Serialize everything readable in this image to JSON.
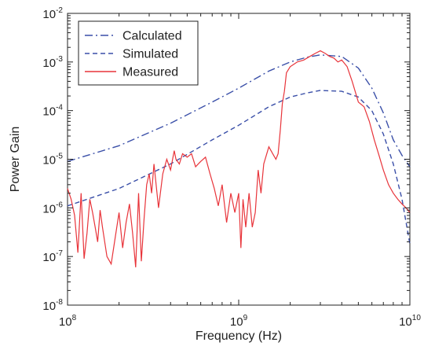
{
  "chart_data": {
    "type": "line",
    "title": "",
    "xlabel": "Frequency (Hz)",
    "ylabel": "Power Gain",
    "xscale": "log",
    "yscale": "log",
    "xlim": [
      100000000.0,
      10000000000.0
    ],
    "ylim": [
      1e-08,
      0.01
    ],
    "grid": false,
    "legend_position": "top-left",
    "x_ticks": [
      {
        "value": 100000000.0,
        "base": "10",
        "exp": "8"
      },
      {
        "value": 1000000000.0,
        "base": "10",
        "exp": "9"
      },
      {
        "value": 10000000000.0,
        "base": "10",
        "exp": "10"
      }
    ],
    "y_ticks": [
      {
        "value": 1e-08,
        "base": "10",
        "exp": "-8"
      },
      {
        "value": 1e-07,
        "base": "10",
        "exp": "-7"
      },
      {
        "value": 1e-06,
        "base": "10",
        "exp": "-6"
      },
      {
        "value": 1e-05,
        "base": "10",
        "exp": "-5"
      },
      {
        "value": 0.0001,
        "base": "10",
        "exp": "-4"
      },
      {
        "value": 0.001,
        "base": "10",
        "exp": "-3"
      },
      {
        "value": 0.01,
        "base": "10",
        "exp": "-2"
      }
    ],
    "series": [
      {
        "name": "Calculated",
        "color": "#3a4fa8",
        "style": "dashdot",
        "x": [
          100000000.0,
          200000000.0,
          400000000.0,
          700000000.0,
          1000000000.0,
          1500000000.0,
          2000000000.0,
          2500000000.0,
          3000000000.0,
          4000000000.0,
          5000000000.0,
          6000000000.0,
          7000000000.0,
          8000000000.0,
          9000000000.0,
          10000000000.0
        ],
        "y": [
          9e-06,
          1.9e-05,
          5.5e-05,
          0.00015,
          0.00029,
          0.00065,
          0.001,
          0.00125,
          0.0014,
          0.0013,
          0.00075,
          0.00029,
          9e-05,
          2.5e-05,
          1.2e-05,
          7e-06
        ]
      },
      {
        "name": "Simulated",
        "color": "#3a4fa8",
        "style": "dashed",
        "x": [
          100000000.0,
          200000000.0,
          400000000.0,
          700000000.0,
          1000000000.0,
          1500000000.0,
          2000000000.0,
          2500000000.0,
          3000000000.0,
          4000000000.0,
          5000000000.0,
          6000000000.0,
          7000000000.0,
          8000000000.0,
          9000000000.0,
          10000000000.0
        ],
        "y": [
          1.1e-06,
          2.5e-06,
          8e-06,
          2.5e-05,
          5e-05,
          0.00012,
          0.00019,
          0.00023,
          0.00026,
          0.00025,
          0.00019,
          0.0001,
          3.3e-05,
          8e-06,
          1.5e-06,
          1.8e-07
        ]
      },
      {
        "name": "Measured",
        "color": "#e8343a",
        "style": "solid",
        "x": [
          100000000.0,
          105000000.0,
          110000000.0,
          115000000.0,
          120000000.0,
          125000000.0,
          130000000.0,
          135000000.0,
          140000000.0,
          145000000.0,
          150000000.0,
          155000000.0,
          160000000.0,
          170000000.0,
          180000000.0,
          190000000.0,
          200000000.0,
          210000000.0,
          220000000.0,
          230000000.0,
          240000000.0,
          250000000.0,
          260000000.0,
          270000000.0,
          280000000.0,
          290000000.0,
          300000000.0,
          310000000.0,
          320000000.0,
          340000000.0,
          360000000.0,
          380000000.0,
          400000000.0,
          420000000.0,
          430000000.0,
          450000000.0,
          470000000.0,
          500000000.0,
          530000000.0,
          560000000.0,
          600000000.0,
          640000000.0,
          680000000.0,
          720000000.0,
          760000000.0,
          800000000.0,
          850000000.0,
          900000000.0,
          950000000.0,
          1000000000.0,
          1030000000.0,
          1060000000.0,
          1100000000.0,
          1150000000.0,
          1200000000.0,
          1250000000.0,
          1300000000.0,
          1350000000.0,
          1400000000.0,
          1500000000.0,
          1600000000.0,
          1650000000.0,
          1700000000.0,
          1750000000.0,
          1800000000.0,
          1850000000.0,
          1900000000.0,
          2000000000.0,
          2100000000.0,
          2200000000.0,
          2400000000.0,
          2600000000.0,
          2800000000.0,
          3000000000.0,
          3200000000.0,
          3400000000.0,
          3600000000.0,
          3800000000.0,
          4000000000.0,
          4300000000.0,
          4600000000.0,
          5000000000.0,
          5400000000.0,
          5800000000.0,
          6200000000.0,
          6600000000.0,
          7000000000.0,
          7500000000.0,
          8000000000.0,
          8500000000.0,
          9000000000.0,
          9500000000.0,
          10000000000.0
        ],
        "y": [
          2.5e-06,
          1.5e-06,
          7e-07,
          1.2e-07,
          2e-06,
          9e-08,
          3e-07,
          1.5e-06,
          8e-07,
          4e-07,
          2e-07,
          9e-07,
          4e-07,
          1e-07,
          7e-08,
          2.5e-07,
          8e-07,
          1.5e-07,
          5e-07,
          1.2e-06,
          3e-07,
          6e-08,
          2e-06,
          8e-08,
          6e-07,
          3e-06,
          5e-06,
          2e-06,
          8e-06,
          1e-06,
          5e-06,
          1e-05,
          6e-06,
          1.5e-05,
          1e-05,
          8e-06,
          1.3e-05,
          1.1e-05,
          1.3e-05,
          7e-06,
          9e-06,
          1.1e-05,
          5e-06,
          2.5e-06,
          1.1e-06,
          3e-06,
          5e-07,
          2e-06,
          8e-07,
          2e-06,
          1.5e-07,
          1.5e-06,
          4e-07,
          2e-06,
          4e-07,
          8e-07,
          6e-06,
          2e-06,
          8e-06,
          1.8e-05,
          1.2e-05,
          1e-05,
          1.3e-05,
          4e-05,
          0.00014,
          0.00025,
          0.0006,
          0.0008,
          0.0009,
          0.001,
          0.0011,
          0.0013,
          0.0015,
          0.0017,
          0.0015,
          0.0013,
          0.0012,
          0.001,
          0.0011,
          0.0008,
          0.0004,
          0.00015,
          0.00012,
          6e-05,
          2.5e-05,
          1.2e-05,
          6e-06,
          3e-06,
          2e-06,
          1.5e-06,
          1.2e-06,
          1e-06,
          8e-07
        ]
      }
    ]
  }
}
